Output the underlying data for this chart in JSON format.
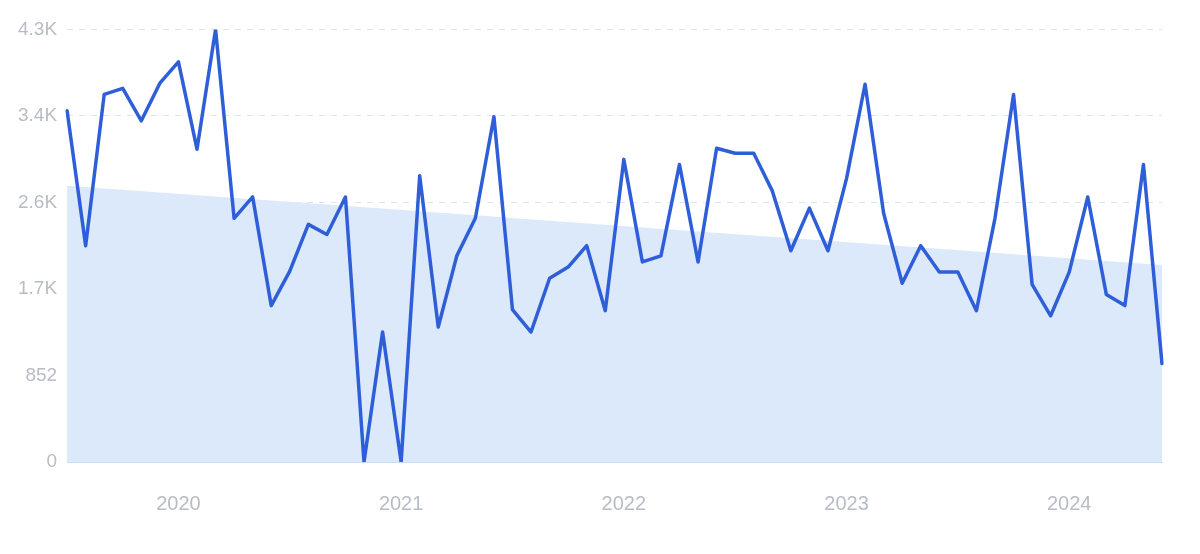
{
  "chart_data": {
    "type": "line",
    "categories": [
      null,
      null,
      null,
      null,
      null,
      null,
      "2020",
      null,
      null,
      null,
      null,
      null,
      null,
      null,
      null,
      null,
      null,
      null,
      "2021",
      null,
      null,
      null,
      null,
      null,
      null,
      null,
      null,
      null,
      null,
      null,
      "2022",
      null,
      null,
      null,
      null,
      null,
      null,
      null,
      null,
      null,
      null,
      null,
      "2023",
      null,
      null,
      null,
      null,
      null,
      null,
      null,
      null,
      null,
      null,
      null,
      "2024",
      null,
      null,
      null,
      null,
      null
    ],
    "series": [
      {
        "type": "area",
        "color": "#dce9fb",
        "values": [
          2720,
          null,
          null,
          null,
          null,
          null,
          null,
          null,
          null,
          null,
          null,
          null,
          null,
          null,
          null,
          null,
          null,
          null,
          null,
          null,
          null,
          null,
          null,
          null,
          null,
          null,
          null,
          null,
          null,
          null,
          null,
          null,
          null,
          null,
          null,
          null,
          null,
          null,
          null,
          null,
          null,
          null,
          null,
          null,
          null,
          null,
          null,
          null,
          null,
          null,
          null,
          null,
          null,
          null,
          null,
          null,
          null,
          null,
          null,
          1940
        ]
      },
      {
        "color": "#2f5fd8",
        "values": [
          3460,
          2130,
          3620,
          3680,
          3360,
          3730,
          3940,
          3080,
          4260,
          2400,
          2610,
          1540,
          1880,
          2340,
          2240,
          2610,
          0,
          1280,
          0,
          2820,
          1330,
          2030,
          2400,
          3400,
          1500,
          1280,
          1810,
          1920,
          2130,
          1490,
          2980,
          1970,
          2030,
          2930,
          1970,
          3090,
          3040,
          3040,
          2670,
          2080,
          2500,
          2080,
          2790,
          3720,
          2450,
          1760,
          2130,
          1870,
          1870,
          1490,
          2400,
          3620,
          1750,
          1440,
          1870,
          2610,
          1650,
          1540,
          2930,
          970
        ]
      }
    ],
    "ylim": [
      0,
      4260
    ],
    "yticks": [
      0,
      852,
      {
        "value": 1704,
        "label": "1.7K"
      },
      {
        "value": 2556,
        "label": "2.6K"
      },
      {
        "value": 3408,
        "label": "3.4K"
      },
      {
        "value": 4260,
        "label": "4.3K"
      }
    ],
    "grid": "y",
    "marker": "none",
    "line_style": "solid"
  }
}
